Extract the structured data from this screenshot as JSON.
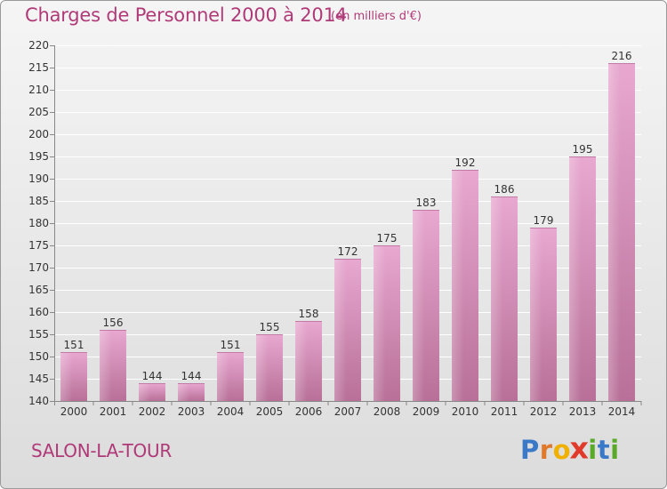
{
  "header": {
    "title": "Charges de Personnel 2000 à 2014",
    "subtitle": "(en milliers d'€)"
  },
  "footer": {
    "city": "SALON-LA-TOUR",
    "logo_text": "Proxiti",
    "logo_colors": [
      "#3a78c8",
      "#e07a2a",
      "#f0b000",
      "#e03a2a",
      "#5aaa2a",
      "#3a78c8",
      "#5aaa2a"
    ]
  },
  "colors": {
    "bar_light": "#e8a8d0",
    "bar_dark": "#b87098",
    "text_accent": "#b03a78"
  },
  "chart_data": {
    "type": "bar",
    "categories": [
      "2000",
      "2001",
      "2002",
      "2003",
      "2004",
      "2005",
      "2006",
      "2007",
      "2008",
      "2009",
      "2010",
      "2011",
      "2012",
      "2013",
      "2014"
    ],
    "values": [
      151,
      156,
      144,
      144,
      151,
      155,
      158,
      172,
      175,
      183,
      192,
      186,
      179,
      195,
      216
    ],
    "ylim": [
      140,
      220
    ],
    "yticks": [
      140,
      145,
      150,
      155,
      160,
      165,
      170,
      175,
      180,
      185,
      190,
      195,
      200,
      205,
      210,
      215,
      220
    ],
    "grid": true,
    "title": "Charges de Personnel 2000 à 2014",
    "xlabel": "",
    "ylabel": ""
  }
}
